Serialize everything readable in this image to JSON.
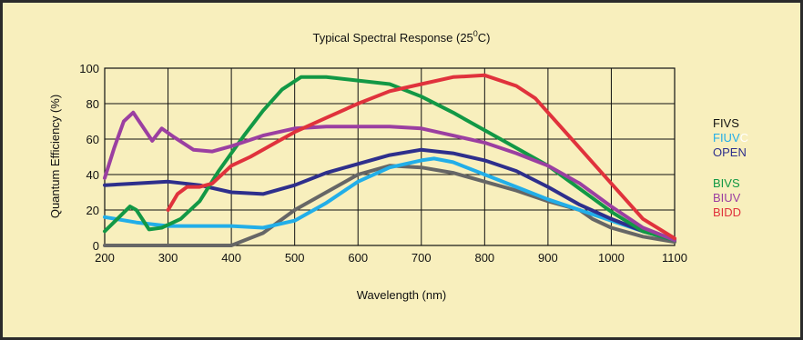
{
  "chart_data": {
    "type": "line",
    "title_main": "Typical Spectral Response (25",
    "title_sup": "0",
    "title_end": "C)",
    "xlabel": "Wavelength (nm)",
    "ylabel": "Quantum Efficiency (%)",
    "xlim": [
      200,
      1100
    ],
    "ylim": [
      0,
      100
    ],
    "xticks": [
      200,
      300,
      400,
      500,
      600,
      700,
      800,
      900,
      1000,
      1100
    ],
    "yticks": [
      0,
      20,
      40,
      60,
      80,
      100
    ],
    "grid": true,
    "legend_position": "right",
    "series": [
      {
        "name": "FIVS",
        "color": "#666666",
        "points": [
          [
            200,
            0
          ],
          [
            300,
            0
          ],
          [
            400,
            0
          ],
          [
            450,
            7
          ],
          [
            500,
            20
          ],
          [
            550,
            30
          ],
          [
            600,
            40
          ],
          [
            650,
            45
          ],
          [
            700,
            44
          ],
          [
            750,
            41
          ],
          [
            800,
            36
          ],
          [
            850,
            31
          ],
          [
            900,
            25
          ],
          [
            950,
            20
          ],
          [
            970,
            15
          ],
          [
            1000,
            10
          ],
          [
            1050,
            5
          ],
          [
            1100,
            2
          ]
        ]
      },
      {
        "name": "FIUVC",
        "color": "#22aee8",
        "points": [
          [
            200,
            16
          ],
          [
            250,
            13
          ],
          [
            300,
            11
          ],
          [
            350,
            11
          ],
          [
            400,
            11
          ],
          [
            450,
            10
          ],
          [
            500,
            14
          ],
          [
            550,
            24
          ],
          [
            600,
            36
          ],
          [
            650,
            44
          ],
          [
            700,
            48
          ],
          [
            720,
            49
          ],
          [
            750,
            47
          ],
          [
            800,
            40
          ],
          [
            850,
            33
          ],
          [
            900,
            26
          ],
          [
            950,
            20
          ],
          [
            1000,
            14
          ],
          [
            1050,
            8
          ],
          [
            1100,
            3
          ]
        ]
      },
      {
        "name": "OPEN",
        "color": "#2e2f8c",
        "points": [
          [
            200,
            34
          ],
          [
            250,
            35
          ],
          [
            300,
            36
          ],
          [
            350,
            34
          ],
          [
            400,
            30
          ],
          [
            450,
            29
          ],
          [
            500,
            34
          ],
          [
            550,
            41
          ],
          [
            600,
            46
          ],
          [
            650,
            51
          ],
          [
            700,
            54
          ],
          [
            750,
            52
          ],
          [
            800,
            48
          ],
          [
            850,
            42
          ],
          [
            900,
            33
          ],
          [
            950,
            23
          ],
          [
            1000,
            15
          ],
          [
            1050,
            8
          ],
          [
            1100,
            3
          ]
        ]
      },
      {
        "name": "BIVS",
        "color": "#129845",
        "points": [
          [
            200,
            8
          ],
          [
            220,
            15
          ],
          [
            240,
            22
          ],
          [
            250,
            20
          ],
          [
            270,
            9
          ],
          [
            290,
            10
          ],
          [
            320,
            15
          ],
          [
            350,
            25
          ],
          [
            380,
            42
          ],
          [
            420,
            62
          ],
          [
            450,
            76
          ],
          [
            480,
            88
          ],
          [
            510,
            95
          ],
          [
            550,
            95
          ],
          [
            600,
            93
          ],
          [
            650,
            91
          ],
          [
            700,
            84
          ],
          [
            750,
            75
          ],
          [
            800,
            65
          ],
          [
            850,
            55
          ],
          [
            900,
            45
          ],
          [
            950,
            32
          ],
          [
            1000,
            19
          ],
          [
            1050,
            8
          ],
          [
            1100,
            3
          ]
        ]
      },
      {
        "name": "BIUV",
        "color": "#9b3fa1",
        "points": [
          [
            200,
            38
          ],
          [
            215,
            55
          ],
          [
            230,
            70
          ],
          [
            245,
            75
          ],
          [
            260,
            67
          ],
          [
            275,
            59
          ],
          [
            290,
            66
          ],
          [
            310,
            61
          ],
          [
            340,
            54
          ],
          [
            370,
            53
          ],
          [
            400,
            56
          ],
          [
            450,
            62
          ],
          [
            500,
            66
          ],
          [
            550,
            67
          ],
          [
            600,
            67
          ],
          [
            650,
            67
          ],
          [
            700,
            66
          ],
          [
            750,
            62
          ],
          [
            800,
            58
          ],
          [
            850,
            52
          ],
          [
            900,
            45
          ],
          [
            950,
            35
          ],
          [
            1000,
            22
          ],
          [
            1050,
            10
          ],
          [
            1100,
            3
          ]
        ]
      },
      {
        "name": "BIDD",
        "color": "#e0323c",
        "points": [
          [
            300,
            20
          ],
          [
            315,
            29
          ],
          [
            330,
            33
          ],
          [
            350,
            33
          ],
          [
            370,
            35
          ],
          [
            400,
            45
          ],
          [
            430,
            50
          ],
          [
            470,
            58
          ],
          [
            500,
            64
          ],
          [
            550,
            72
          ],
          [
            600,
            80
          ],
          [
            650,
            87
          ],
          [
            700,
            91
          ],
          [
            750,
            95
          ],
          [
            800,
            96
          ],
          [
            850,
            90
          ],
          [
            880,
            83
          ],
          [
            900,
            75
          ],
          [
            950,
            55
          ],
          [
            1000,
            35
          ],
          [
            1050,
            15
          ],
          [
            1100,
            4
          ]
        ]
      }
    ],
    "legend_groups": [
      [
        {
          "label": "FIVS",
          "color": "#111111"
        },
        {
          "label_parts": [
            "FIUV",
            "C"
          ],
          "colors": [
            "#22aee8",
            "#ffffff"
          ]
        },
        {
          "label": "OPEN",
          "color": "#2e2f8c"
        }
      ],
      [
        {
          "label": "BIVS",
          "color": "#129845"
        },
        {
          "label": "BIUV",
          "color": "#9b3fa1"
        },
        {
          "label": "BIDD",
          "color": "#e0323c"
        }
      ]
    ]
  }
}
